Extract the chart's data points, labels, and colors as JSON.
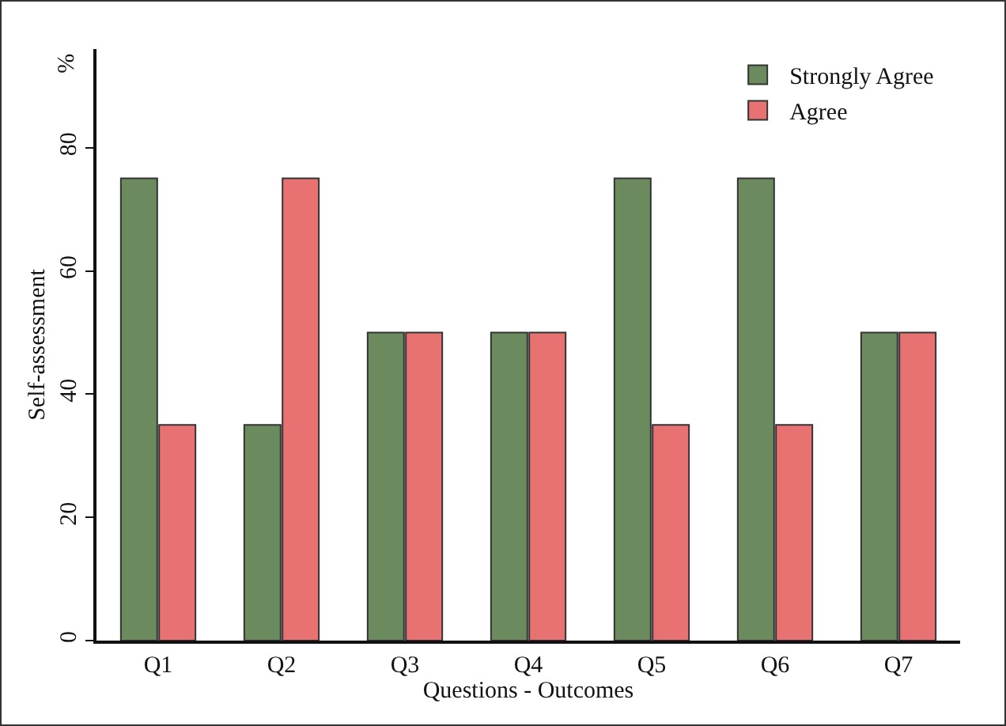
{
  "chart_data": {
    "type": "bar",
    "xlabel": "Questions - Outcomes",
    "ylabel": "Self-assessment",
    "annotations": [
      "%"
    ],
    "categories": [
      "Q1",
      "Q2",
      "Q3",
      "Q4",
      "Q5",
      "Q6",
      "Q7"
    ],
    "series": [
      {
        "name": "Strongly Agree",
        "color": "#6b8a5e",
        "values": [
          75,
          35,
          50,
          50,
          75,
          75,
          50
        ]
      },
      {
        "name": "Agree",
        "color": "#e87272",
        "values": [
          35,
          75,
          50,
          50,
          35,
          35,
          50
        ]
      }
    ],
    "ylim": [
      0,
      96
    ],
    "yticks": [
      0,
      20,
      40,
      60,
      80
    ],
    "grid": false,
    "legend": "top right"
  }
}
